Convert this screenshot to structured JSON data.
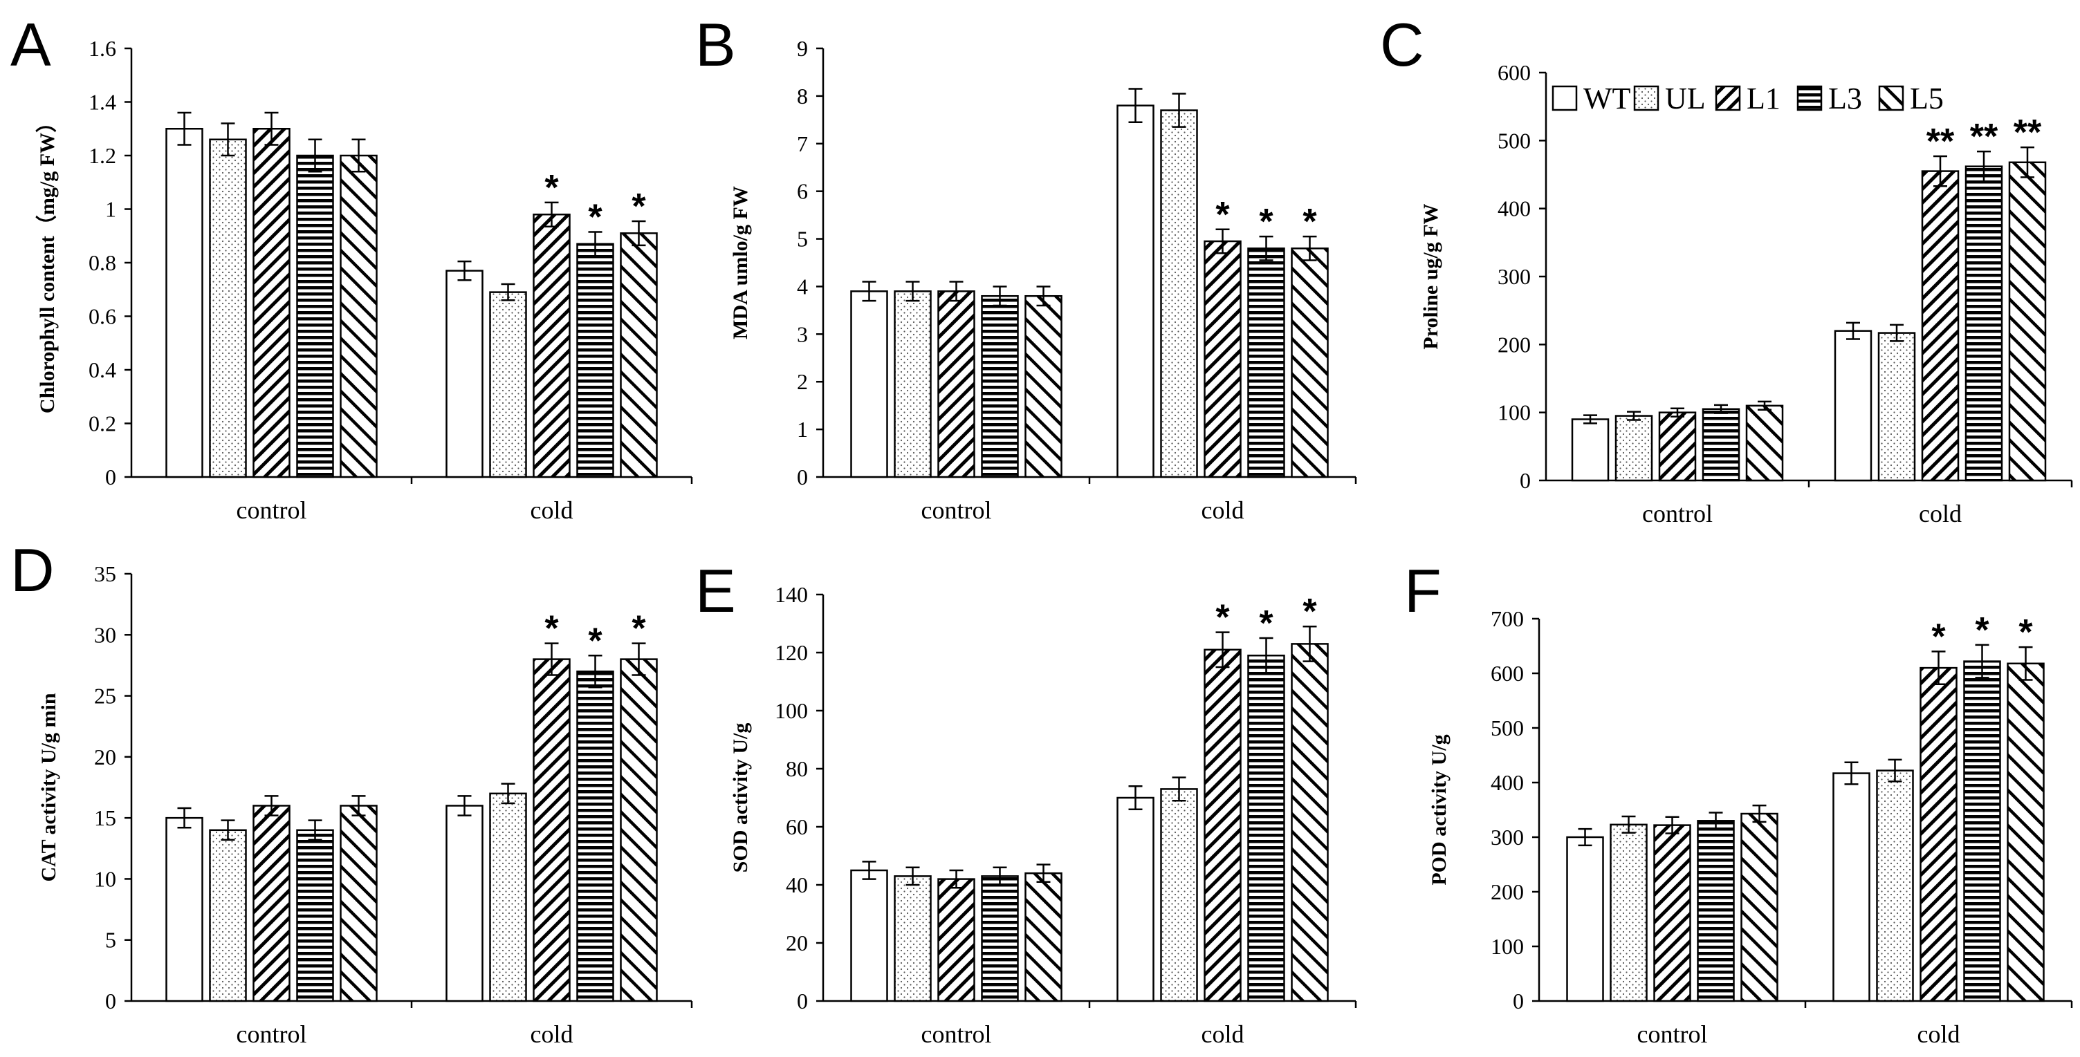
{
  "groups": [
    "control",
    "cold"
  ],
  "legend": [
    {
      "name": "WT",
      "pattern": "plain"
    },
    {
      "name": "UL",
      "pattern": "dots"
    },
    {
      "name": "L1",
      "pattern": "diag"
    },
    {
      "name": "L3",
      "pattern": "horiz"
    },
    {
      "name": "L5",
      "pattern": "diag-sparse"
    }
  ],
  "chart_data": [
    {
      "panel": "A",
      "type": "bar",
      "ylabel": "Chlorophyll content（mg/g FW）",
      "ylim": [
        0,
        1.6
      ],
      "ystep": 0.2,
      "yticks": [
        "0",
        "0.2",
        "0.4",
        "0.6",
        "0.8",
        "1",
        "1.2",
        "1.4",
        "1.6"
      ],
      "categories": [
        "control",
        "cold"
      ],
      "series": [
        {
          "name": "WT",
          "values": [
            1.3,
            0.77
          ],
          "errors": [
            0.06,
            0.035
          ]
        },
        {
          "name": "UL",
          "values": [
            1.26,
            0.69
          ],
          "errors": [
            0.06,
            0.03
          ]
        },
        {
          "name": "L1",
          "values": [
            1.3,
            0.98
          ],
          "errors": [
            0.06,
            0.045
          ]
        },
        {
          "name": "L3",
          "values": [
            1.2,
            0.87
          ],
          "errors": [
            0.06,
            0.045
          ]
        },
        {
          "name": "L5",
          "values": [
            1.2,
            0.91
          ],
          "errors": [
            0.06,
            0.045
          ]
        }
      ],
      "significance": [
        [
          "",
          ""
        ],
        [
          "",
          ""
        ],
        [
          "",
          "*"
        ],
        [
          "",
          "*"
        ],
        [
          "",
          "*"
        ]
      ]
    },
    {
      "panel": "B",
      "type": "bar",
      "ylabel": "MDA umlo/g FW",
      "ylim": [
        0,
        9
      ],
      "ystep": 1,
      "yticks": [
        "0",
        "1",
        "2",
        "3",
        "4",
        "5",
        "6",
        "7",
        "8",
        "9"
      ],
      "categories": [
        "control",
        "cold"
      ],
      "series": [
        {
          "name": "WT",
          "values": [
            3.9,
            7.8
          ],
          "errors": [
            0.2,
            0.35
          ]
        },
        {
          "name": "UL",
          "values": [
            3.9,
            7.7
          ],
          "errors": [
            0.2,
            0.35
          ]
        },
        {
          "name": "L1",
          "values": [
            3.9,
            4.95
          ],
          "errors": [
            0.2,
            0.25
          ]
        },
        {
          "name": "L3",
          "values": [
            3.8,
            4.8
          ],
          "errors": [
            0.2,
            0.25
          ]
        },
        {
          "name": "L5",
          "values": [
            3.8,
            4.8
          ],
          "errors": [
            0.2,
            0.25
          ]
        }
      ],
      "significance": [
        [
          "",
          ""
        ],
        [
          "",
          ""
        ],
        [
          "",
          "*"
        ],
        [
          "",
          "*"
        ],
        [
          "",
          "*"
        ]
      ]
    },
    {
      "panel": "C",
      "type": "bar",
      "ylabel": "Proline ug/g FW",
      "ylim": [
        0,
        600
      ],
      "ystep": 100,
      "yticks": [
        "0",
        "100",
        "200",
        "300",
        "400",
        "500",
        "600"
      ],
      "categories": [
        "control",
        "cold"
      ],
      "series": [
        {
          "name": "WT",
          "values": [
            90,
            220
          ],
          "errors": [
            6,
            12
          ]
        },
        {
          "name": "UL",
          "values": [
            95,
            217
          ],
          "errors": [
            6,
            12
          ]
        },
        {
          "name": "L1",
          "values": [
            100,
            455
          ],
          "errors": [
            6,
            22
          ]
        },
        {
          "name": "L3",
          "values": [
            105,
            462
          ],
          "errors": [
            6,
            22
          ]
        },
        {
          "name": "L5",
          "values": [
            110,
            468
          ],
          "errors": [
            6,
            22
          ]
        }
      ],
      "significance": [
        [
          "",
          ""
        ],
        [
          "",
          ""
        ],
        [
          "",
          "**"
        ],
        [
          "",
          "**"
        ],
        [
          "",
          "**"
        ]
      ]
    },
    {
      "panel": "D",
      "type": "bar",
      "ylabel": "CAT activity U/g min",
      "ylim": [
        0,
        35
      ],
      "ystep": 5,
      "yticks": [
        "0",
        "5",
        "10",
        "15",
        "20",
        "25",
        "30",
        "35"
      ],
      "categories": [
        "control",
        "cold"
      ],
      "series": [
        {
          "name": "WT",
          "values": [
            15,
            16
          ],
          "errors": [
            0.8,
            0.8
          ]
        },
        {
          "name": "UL",
          "values": [
            14,
            17
          ],
          "errors": [
            0.8,
            0.8
          ]
        },
        {
          "name": "L1",
          "values": [
            16,
            28
          ],
          "errors": [
            0.8,
            1.3
          ]
        },
        {
          "name": "L3",
          "values": [
            14,
            27
          ],
          "errors": [
            0.8,
            1.3
          ]
        },
        {
          "name": "L5",
          "values": [
            16,
            28
          ],
          "errors": [
            0.8,
            1.3
          ]
        }
      ],
      "significance": [
        [
          "",
          ""
        ],
        [
          "",
          ""
        ],
        [
          "",
          "*"
        ],
        [
          "",
          "*"
        ],
        [
          "",
          "*"
        ]
      ]
    },
    {
      "panel": "E",
      "type": "bar",
      "ylabel": "SOD activity U/g",
      "ylim": [
        0,
        140
      ],
      "ystep": 20,
      "yticks": [
        "0",
        "20",
        "40",
        "60",
        "80",
        "100",
        "120",
        "140"
      ],
      "categories": [
        "control",
        "cold"
      ],
      "series": [
        {
          "name": "WT",
          "values": [
            45,
            70
          ],
          "errors": [
            3,
            4
          ]
        },
        {
          "name": "UL",
          "values": [
            43,
            73
          ],
          "errors": [
            3,
            4
          ]
        },
        {
          "name": "L1",
          "values": [
            42,
            121
          ],
          "errors": [
            3,
            6
          ]
        },
        {
          "name": "L3",
          "values": [
            43,
            119
          ],
          "errors": [
            3,
            6
          ]
        },
        {
          "name": "L5",
          "values": [
            44,
            123
          ],
          "errors": [
            3,
            6
          ]
        }
      ],
      "significance": [
        [
          "",
          ""
        ],
        [
          "",
          ""
        ],
        [
          "",
          "*"
        ],
        [
          "",
          "*"
        ],
        [
          "",
          "*"
        ]
      ]
    },
    {
      "panel": "F",
      "type": "bar",
      "ylabel": "POD activity U/g",
      "ylim": [
        0,
        700
      ],
      "ystep": 100,
      "yticks": [
        "0",
        "100",
        "200",
        "300",
        "400",
        "500",
        "600",
        "700"
      ],
      "categories": [
        "control",
        "cold"
      ],
      "series": [
        {
          "name": "WT",
          "values": [
            300,
            417
          ],
          "errors": [
            15,
            20
          ]
        },
        {
          "name": "UL",
          "values": [
            323,
            422
          ],
          "errors": [
            15,
            20
          ]
        },
        {
          "name": "L1",
          "values": [
            322,
            610
          ],
          "errors": [
            15,
            30
          ]
        },
        {
          "name": "L3",
          "values": [
            330,
            622
          ],
          "errors": [
            15,
            30
          ]
        },
        {
          "name": "L5",
          "values": [
            343,
            618
          ],
          "errors": [
            15,
            30
          ]
        }
      ],
      "significance": [
        [
          "",
          ""
        ],
        [
          "",
          ""
        ],
        [
          "",
          "*"
        ],
        [
          "",
          "*"
        ],
        [
          "",
          "*"
        ]
      ]
    }
  ]
}
